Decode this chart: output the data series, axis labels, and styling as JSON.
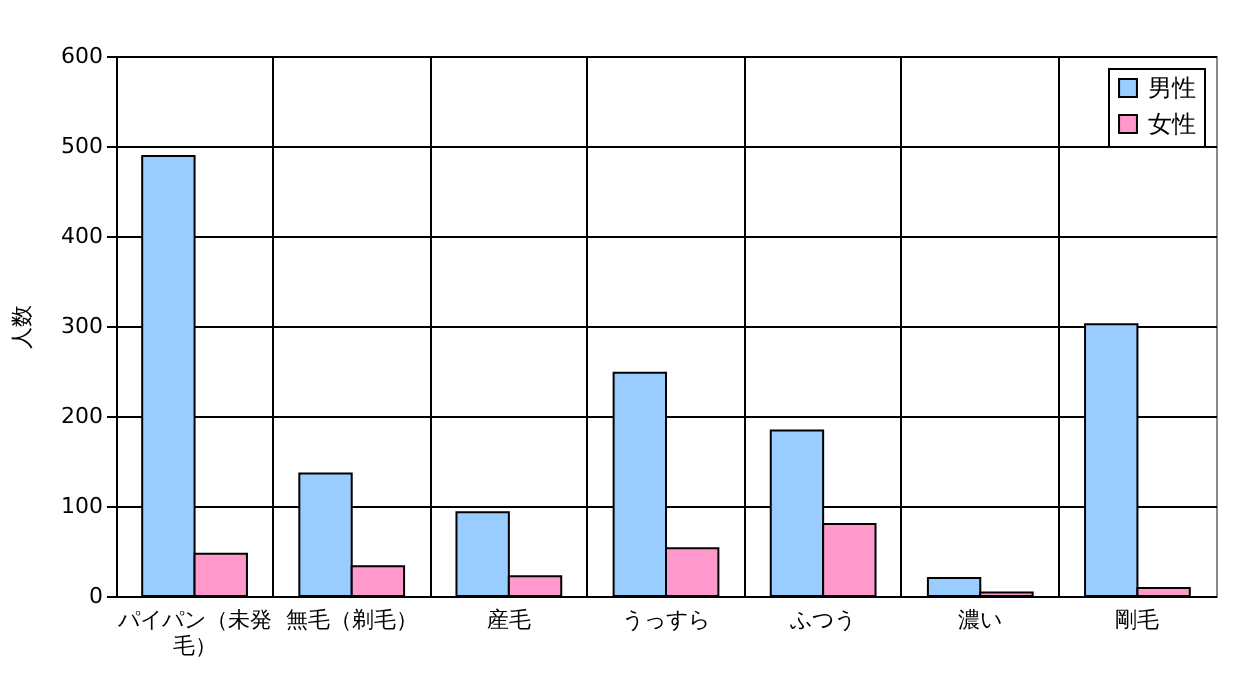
{
  "chart_data": {
    "type": "bar",
    "ylabel": "人数",
    "categories": [
      "パイパン（未発毛）",
      "無毛（剃毛）",
      "産毛",
      "うっすら",
      "ふつう",
      "濃い",
      "剛毛"
    ],
    "series": [
      {
        "name": "男性",
        "color": "#99ccff",
        "values": [
          489,
          136,
          93,
          248,
          184,
          20,
          302
        ]
      },
      {
        "name": "女性",
        "color": "#ff99cc",
        "values": [
          47,
          33,
          22,
          53,
          80,
          4,
          9
        ]
      }
    ],
    "ylim": [
      0,
      600
    ],
    "yticks": [
      0,
      100,
      200,
      300,
      400,
      500,
      600
    ],
    "grid": true,
    "legend": "top right"
  }
}
